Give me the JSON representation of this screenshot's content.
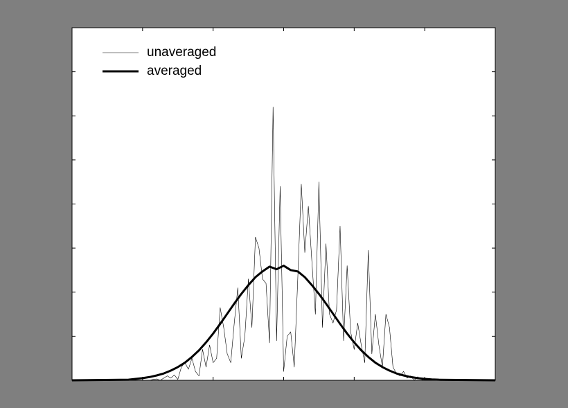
{
  "chart_data": {
    "type": "line",
    "xlim": [
      0,
      6
    ],
    "xticks": [
      1,
      2,
      3,
      4,
      5
    ],
    "ylim": [
      0,
      8
    ],
    "yticks": [
      1,
      2,
      3,
      4,
      5,
      6,
      7
    ],
    "legend": "upper-left",
    "series": [
      {
        "name": "unaveraged",
        "color": "#000000",
        "width": 0.6,
        "x": [
          0,
          1.0,
          1.05,
          1.1,
          1.15,
          1.2,
          1.25,
          1.3,
          1.35,
          1.4,
          1.45,
          1.5,
          1.55,
          1.6,
          1.65,
          1.7,
          1.75,
          1.8,
          1.85,
          1.9,
          1.95,
          2.0,
          2.05,
          2.1,
          2.15,
          2.2,
          2.25,
          2.3,
          2.35,
          2.4,
          2.45,
          2.5,
          2.55,
          2.6,
          2.65,
          2.7,
          2.75,
          2.8,
          2.85,
          2.9,
          2.95,
          3.0,
          3.05,
          3.1,
          3.15,
          3.2,
          3.25,
          3.3,
          3.35,
          3.4,
          3.45,
          3.5,
          3.55,
          3.6,
          3.65,
          3.7,
          3.75,
          3.8,
          3.85,
          3.9,
          3.95,
          4.0,
          4.05,
          4.1,
          4.15,
          4.2,
          4.25,
          4.3,
          4.35,
          4.4,
          4.45,
          4.5,
          4.55,
          4.6,
          4.65,
          4.7,
          4.75,
          4.8,
          4.85,
          4.9,
          4.95,
          5.0,
          6
        ],
        "values": [
          0,
          0,
          0,
          0,
          0.02,
          0.03,
          0,
          0.05,
          0.1,
          0.05,
          0.12,
          0.02,
          0.3,
          0.4,
          0.25,
          0.5,
          0.2,
          0.1,
          0.7,
          0.3,
          0.8,
          0.4,
          0.5,
          1.65,
          1.2,
          0.6,
          0.4,
          1.3,
          2.1,
          0.5,
          1.0,
          2.3,
          1.2,
          3.25,
          3.0,
          2.3,
          2.2,
          0.85,
          6.2,
          0.9,
          4.4,
          0.2,
          1.0,
          1.1,
          0.3,
          2.3,
          4.45,
          2.9,
          3.95,
          2.7,
          1.5,
          4.5,
          1.2,
          3.1,
          1.5,
          1.3,
          1.6,
          3.5,
          0.9,
          2.6,
          1.1,
          0.7,
          1.3,
          0.8,
          0.4,
          2.95,
          0.6,
          1.5,
          0.8,
          0.3,
          1.5,
          1.2,
          0.3,
          0.15,
          0.1,
          0.2,
          0.05,
          0.1,
          0,
          0.08,
          0.02,
          0,
          0
        ]
      },
      {
        "name": "averaged",
        "color": "#000000",
        "width": 3,
        "x": [
          0,
          0.8,
          0.9,
          1.0,
          1.1,
          1.2,
          1.3,
          1.4,
          1.5,
          1.6,
          1.7,
          1.8,
          1.9,
          2.0,
          2.1,
          2.2,
          2.3,
          2.4,
          2.5,
          2.6,
          2.7,
          2.8,
          2.9,
          3.0,
          3.1,
          3.2,
          3.3,
          3.4,
          3.5,
          3.6,
          3.7,
          3.8,
          3.9,
          4.0,
          4.1,
          4.2,
          4.3,
          4.4,
          4.5,
          4.6,
          4.7,
          4.8,
          4.9,
          5.0,
          5.1,
          5.2,
          6
        ],
        "values": [
          0,
          0.013,
          0.032,
          0.049,
          0.074,
          0.11,
          0.155,
          0.22,
          0.3,
          0.4,
          0.53,
          0.68,
          0.86,
          1.06,
          1.28,
          1.51,
          1.74,
          1.96,
          2.16,
          2.34,
          2.47,
          2.58,
          2.52,
          2.6,
          2.5,
          2.47,
          2.34,
          2.16,
          1.96,
          1.74,
          1.51,
          1.28,
          1.06,
          0.86,
          0.68,
          0.53,
          0.4,
          0.3,
          0.22,
          0.155,
          0.11,
          0.074,
          0.049,
          0.032,
          0.02,
          0.013,
          0
        ]
      }
    ]
  }
}
